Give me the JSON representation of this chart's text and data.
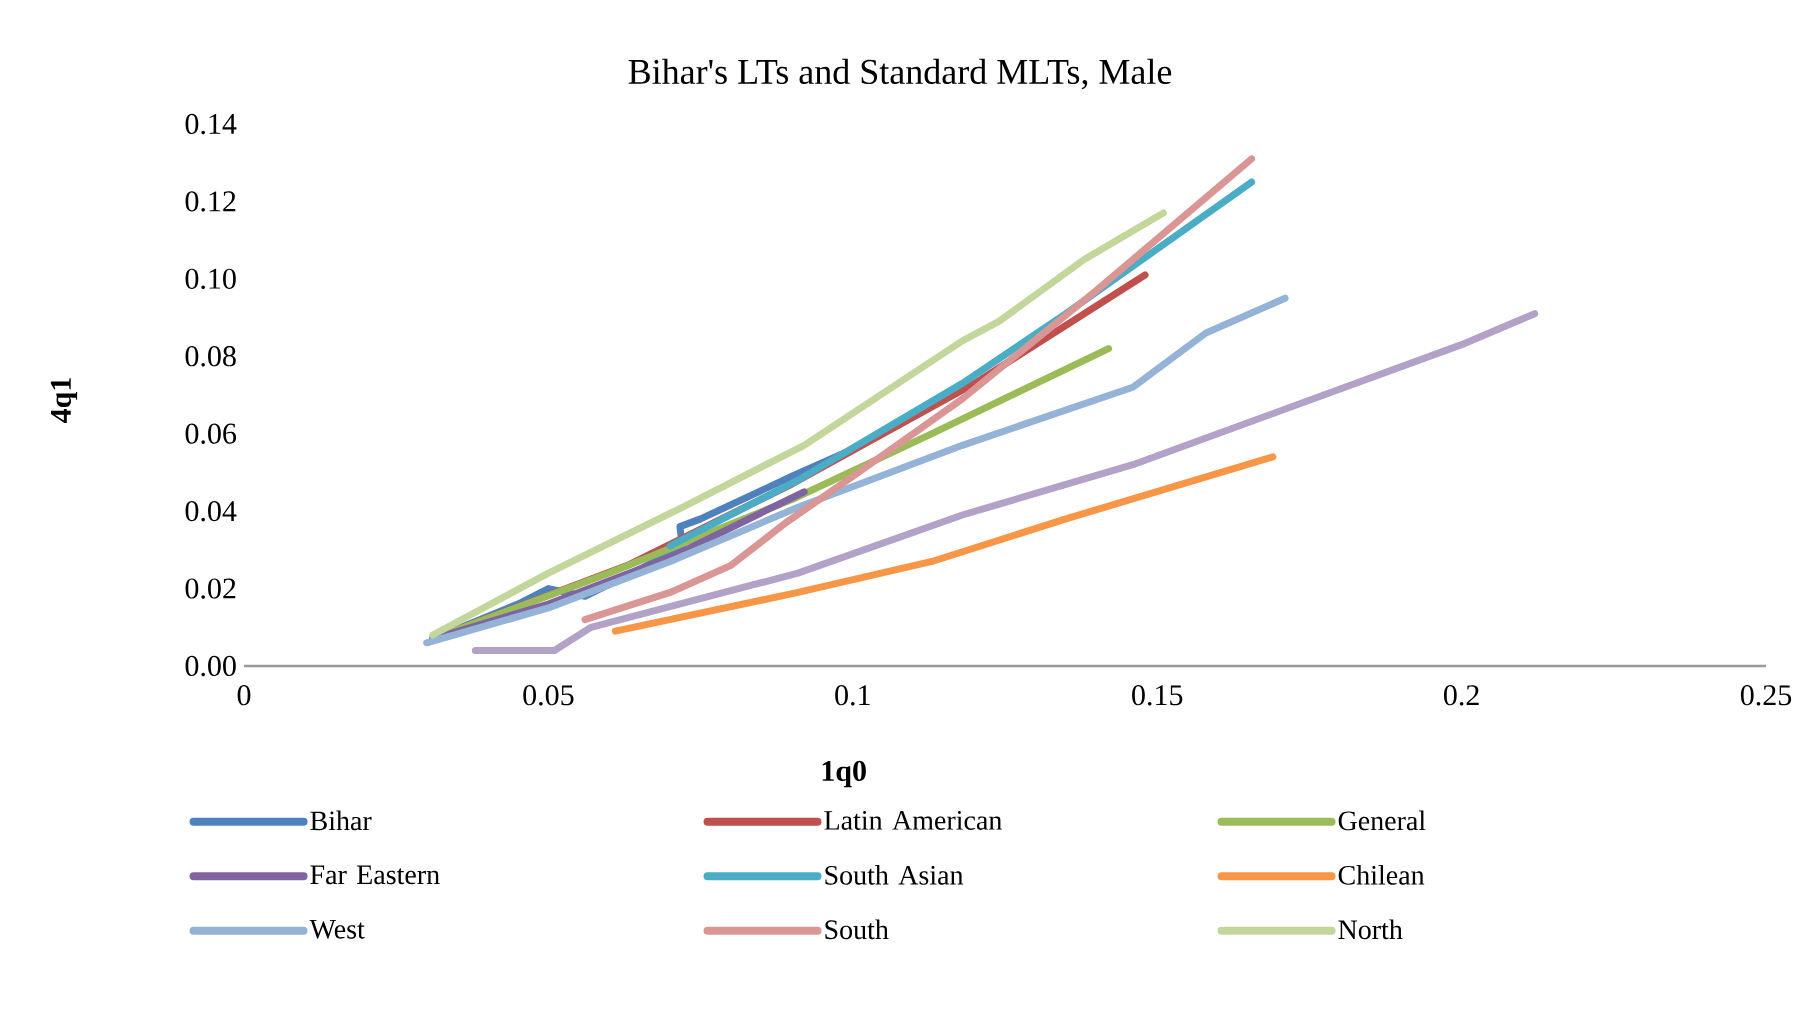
{
  "chart_data": {
    "type": "line",
    "title": "Bihar's LTs and Standard MLTs, Male",
    "xlabel": "1q0",
    "ylabel": "4q1",
    "xlim": [
      0,
      0.25
    ],
    "xticks": [
      0,
      0.05,
      0.1,
      0.15,
      0.2,
      0.25
    ],
    "ylim": [
      0,
      0.14
    ],
    "yticks": [
      {
        "value": 0,
        "label": "0.00"
      },
      {
        "value": 0.02,
        "label": "0.02"
      },
      {
        "value": 0.04,
        "label": "0.04"
      },
      {
        "value": 0.06,
        "label": "0.06"
      },
      {
        "value": 0.08,
        "label": "0.08"
      },
      {
        "value": 0.1,
        "label": "0.10"
      },
      {
        "value": 0.12,
        "label": "0.12"
      },
      {
        "value": 0.14,
        "label": "0.14"
      }
    ],
    "legend": "bottom",
    "series": [
      {
        "name": "Bihar",
        "color": "#4f81bd",
        "x": [
          0.031,
          0.045,
          0.05,
          0.056,
          0.065,
          0.072,
          0.0716,
          0.075,
          0.09,
          0.1
        ],
        "values": [
          0.007,
          0.016,
          0.02,
          0.018,
          0.025,
          0.031,
          0.036,
          0.038,
          0.049,
          0.056
        ]
      },
      {
        "name": "Latin American",
        "color": "#c0504d",
        "x": [
          0.031,
          0.063,
          0.09,
          0.12,
          0.148
        ],
        "values": [
          0.007,
          0.026,
          0.047,
          0.073,
          0.101
        ]
      },
      {
        "name": "General",
        "color": "#9bbb59",
        "x": [
          0.031,
          0.06,
          0.09,
          0.113,
          0.142
        ],
        "values": [
          0.007,
          0.024,
          0.043,
          0.06,
          0.082
        ]
      },
      {
        "name": "Far Eastern",
        "color": "#8064a2",
        "x": [
          0.031,
          0.05,
          0.07,
          0.092
        ],
        "values": [
          0.007,
          0.016,
          0.028,
          0.045
        ]
      },
      {
        "name": "South Asian",
        "color": "#4bacc6",
        "x": [
          0.07,
          0.091,
          0.118,
          0.135,
          0.1655
        ],
        "values": [
          0.031,
          0.048,
          0.073,
          0.091,
          0.125
        ]
      },
      {
        "name": "Chilean",
        "color": "#f79646",
        "x": [
          0.061,
          0.091,
          0.113,
          0.135,
          0.169
        ],
        "values": [
          0.009,
          0.019,
          0.027,
          0.038,
          0.054
        ]
      },
      {
        "name": "West",
        "color": "#95b3d7",
        "x": [
          0.03,
          0.05,
          0.07,
          0.091,
          0.118,
          0.146,
          0.158,
          0.171
        ],
        "values": [
          0.006,
          0.015,
          0.027,
          0.041,
          0.057,
          0.072,
          0.086,
          0.095
        ]
      },
      {
        "name": "South",
        "color": "#d99694",
        "x": [
          0.056,
          0.07,
          0.08,
          0.089,
          0.1,
          0.118,
          0.14,
          0.1655
        ],
        "values": [
          0.012,
          0.019,
          0.026,
          0.037,
          0.049,
          0.069,
          0.097,
          0.131
        ]
      },
      {
        "name": "North",
        "color": "#c3d69b",
        "x": [
          0.031,
          0.05,
          0.072,
          0.092,
          0.118,
          0.124,
          0.138,
          0.151
        ],
        "values": [
          0.008,
          0.024,
          0.041,
          0.057,
          0.084,
          0.089,
          0.105,
          0.117
        ]
      },
      {
        "color": "#b3a2c7",
        "x": [
          0.038,
          0.051,
          0.057,
          0.091,
          0.118,
          0.146,
          0.2,
          0.212
        ],
        "values": [
          0.004,
          0.004,
          0.01,
          0.024,
          0.039,
          0.052,
          0.083,
          0.091
        ]
      }
    ]
  }
}
